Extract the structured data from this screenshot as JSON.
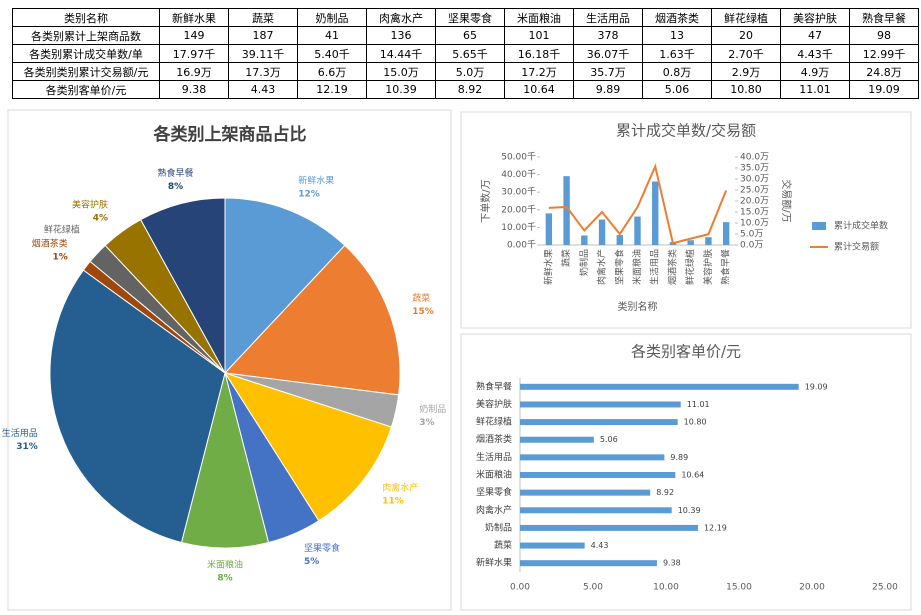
{
  "table": {
    "header": [
      "类别名称",
      "新鲜水果",
      "蔬菜",
      "奶制品",
      "肉禽水产",
      "坚果零食",
      "米面粮油",
      "生活用品",
      "烟酒茶类",
      "鲜花绿植",
      "美容护肤",
      "熟食早餐"
    ],
    "rows": [
      [
        "各类别累计上架商品数",
        "149",
        "187",
        "41",
        "136",
        "65",
        "101",
        "378",
        "13",
        "20",
        "47",
        "98"
      ],
      [
        "各类别累计成交单数/单",
        "17.97千",
        "39.11千",
        "5.40千",
        "14.44千",
        "5.65千",
        "16.18千",
        "36.07千",
        "1.63千",
        "2.70千",
        "4.43千",
        "12.99千"
      ],
      [
        "各类别类别累计交易额/元",
        "16.9万",
        "17.3万",
        "6.6万",
        "15.0万",
        "5.0万",
        "17.2万",
        "35.7万",
        "0.8万",
        "2.9万",
        "4.9万",
        "24.8万"
      ],
      [
        "各类别客单价/元",
        "9.38",
        "4.43",
        "12.19",
        "10.39",
        "8.92",
        "10.64",
        "9.89",
        "5.06",
        "10.80",
        "11.01",
        "19.09"
      ]
    ]
  },
  "chart_data": [
    {
      "type": "pie",
      "title": "各类别上架商品占比",
      "categories": [
        "新鲜水果",
        "蔬菜",
        "奶制品",
        "肉禽水产",
        "坚果零食",
        "米面粮油",
        "生活用品",
        "烟酒茶类",
        "鲜花绿植",
        "美容护肤",
        "熟食早餐"
      ],
      "values": [
        12,
        15,
        3,
        11,
        5,
        8,
        31,
        1,
        2,
        4,
        8
      ],
      "value_labels": [
        "12%",
        "15%",
        "3%",
        "11%",
        "5%",
        "8%",
        "31%",
        "1%",
        null,
        "4%",
        "8%"
      ],
      "colors": [
        "#5b9bd5",
        "#ed7d31",
        "#a5a5a5",
        "#ffc000",
        "#4472c4",
        "#70ad47",
        "#255e91",
        "#9e480e",
        "#636363",
        "#997300",
        "#264478"
      ]
    },
    {
      "type": "combo",
      "title": "累计成交单数/交易额",
      "xlabel": "类别名称",
      "ylabel": "下单数/万",
      "y2label": "交易额/万",
      "categories": [
        "新鲜水果",
        "蔬菜",
        "奶制品",
        "肉禽水产",
        "坚果零食",
        "米面粮油",
        "生活用品",
        "烟酒茶类",
        "鲜花绿植",
        "美容护肤",
        "熟食早餐"
      ],
      "series": [
        {
          "name": "累计成交单数",
          "color": "#5b9bd5",
          "mark": "bar",
          "values": [
            17.97,
            39.11,
            5.4,
            14.44,
            5.65,
            16.18,
            36.07,
            1.63,
            2.7,
            4.43,
            12.99
          ]
        },
        {
          "name": "累计交易额",
          "color": "#ed7d31",
          "mark": "line",
          "axis": "y2",
          "values": [
            16.9,
            17.3,
            6.6,
            15.0,
            5.0,
            17.2,
            35.7,
            0.8,
            2.9,
            4.9,
            24.8
          ]
        }
      ],
      "ylim": [
        0,
        50
      ],
      "yticks": [
        {
          "value": 0,
          "label": "0.00千"
        },
        {
          "value": 10,
          "label": "10.00千"
        },
        {
          "value": 20,
          "label": "20.00千"
        },
        {
          "value": 30,
          "label": "30.00千"
        },
        {
          "value": 40,
          "label": "40.00千"
        },
        {
          "value": 50,
          "label": "50.00千"
        }
      ],
      "y2lim": [
        0,
        40
      ],
      "y2ticks": [
        {
          "value": 0,
          "label": "0.0万"
        },
        {
          "value": 5,
          "label": "5.0万"
        },
        {
          "value": 10,
          "label": "10.0万"
        },
        {
          "value": 15,
          "label": "15.0万"
        },
        {
          "value": 20,
          "label": "20.0万"
        },
        {
          "value": 25,
          "label": "25.0万"
        },
        {
          "value": 30,
          "label": "30.0万"
        },
        {
          "value": 35,
          "label": "35.0万"
        },
        {
          "value": 40,
          "label": "40.0万"
        }
      ]
    },
    {
      "type": "hbar",
      "title": "各类别客单价/元",
      "color": "#5b9bd5",
      "categories": [
        "新鲜水果",
        "蔬菜",
        "奶制品",
        "肉禽水产",
        "坚果零食",
        "米面粮油",
        "生活用品",
        "烟酒茶类",
        "鲜花绿植",
        "美容护肤",
        "熟食早餐"
      ],
      "values": [
        9.38,
        4.43,
        12.19,
        10.39,
        8.92,
        10.64,
        9.89,
        5.06,
        10.8,
        11.01,
        19.09
      ],
      "value_labels": [
        "9.38",
        "4.43",
        "12.19",
        "10.39",
        "8.92",
        "10.64",
        "9.89",
        "5.06",
        "10.80",
        "11.01",
        "19.09"
      ],
      "xlim": [
        0,
        25
      ],
      "xticks": [
        {
          "value": 0,
          "label": "0.00"
        },
        {
          "value": 5,
          "label": "5.00"
        },
        {
          "value": 10,
          "label": "10.00"
        },
        {
          "value": 15,
          "label": "15.00"
        },
        {
          "value": 20,
          "label": "20.00"
        },
        {
          "value": 25,
          "label": "25.00"
        }
      ]
    }
  ]
}
